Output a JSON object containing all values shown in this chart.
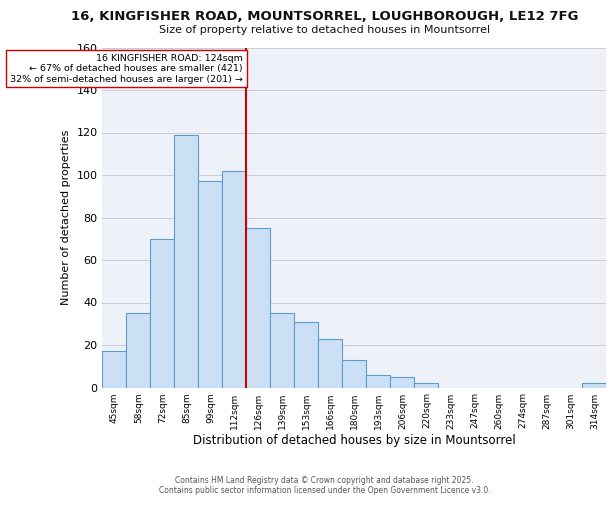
{
  "title_line1": "16, KINGFISHER ROAD, MOUNTSORREL, LOUGHBOROUGH, LE12 7FG",
  "title_line2": "Size of property relative to detached houses in Mountsorrel",
  "xlabel": "Distribution of detached houses by size in Mountsorrel",
  "ylabel": "Number of detached properties",
  "bin_labels": [
    "45sqm",
    "58sqm",
    "72sqm",
    "85sqm",
    "99sqm",
    "112sqm",
    "126sqm",
    "139sqm",
    "153sqm",
    "166sqm",
    "180sqm",
    "193sqm",
    "206sqm",
    "220sqm",
    "233sqm",
    "247sqm",
    "260sqm",
    "274sqm",
    "287sqm",
    "301sqm",
    "314sqm"
  ],
  "bar_values": [
    17,
    35,
    70,
    119,
    97,
    102,
    75,
    35,
    31,
    23,
    13,
    6,
    5,
    2,
    0,
    0,
    0,
    0,
    0,
    0,
    2
  ],
  "bar_color": "#cce0f5",
  "bar_edge_color": "#5b9bd5",
  "vline_x": 6,
  "vline_color": "#cc0000",
  "annotation_text": "16 KINGFISHER ROAD: 124sqm\n← 67% of detached houses are smaller (421)\n32% of semi-detached houses are larger (201) →",
  "annotation_box_color": "#ffffff",
  "annotation_box_edge": "#cc0000",
  "ylim": [
    0,
    160
  ],
  "yticks": [
    0,
    20,
    40,
    60,
    80,
    100,
    120,
    140,
    160
  ],
  "footer_line1": "Contains HM Land Registry data © Crown copyright and database right 2025.",
  "footer_line2": "Contains public sector information licensed under the Open Government Licence v3.0.",
  "background_color": "#ffffff",
  "plot_bg_color": "#eef2f8",
  "grid_color": "#c8cdd8"
}
